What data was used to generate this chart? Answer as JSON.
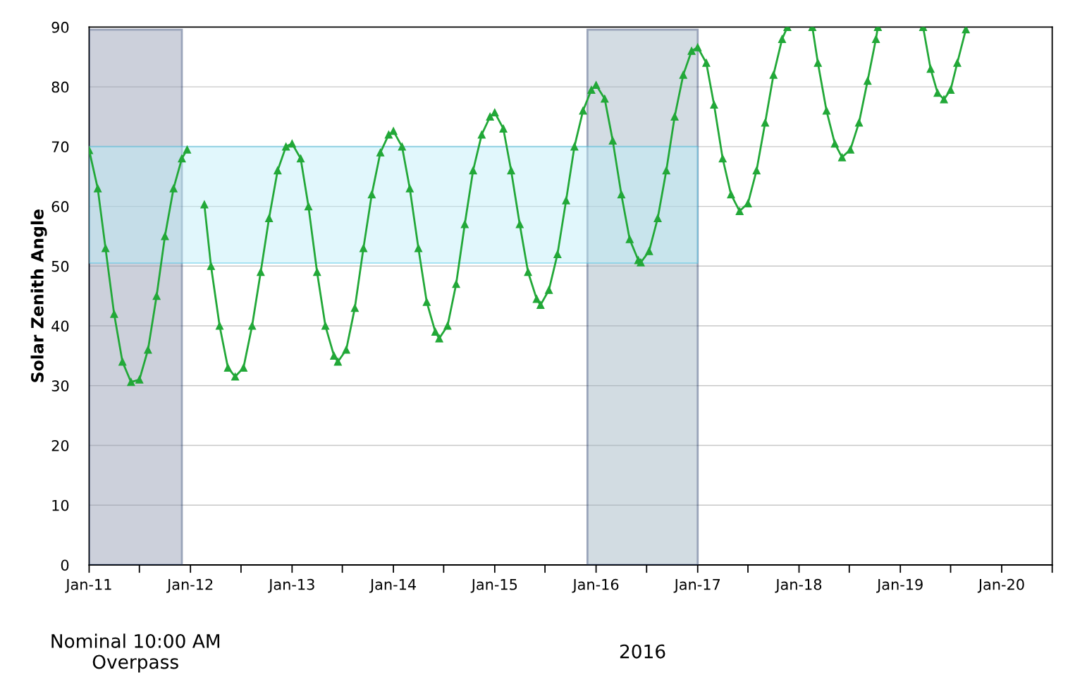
{
  "chart_data": {
    "type": "line",
    "ylabel": "Solar Zenith Angle",
    "x": [
      "2011-01-01",
      "2011-02-01",
      "2011-03-01",
      "2011-04-01",
      "2011-05-01",
      "2011-06-01",
      "2011-07-01",
      "2011-08-01",
      "2011-09-01",
      "2011-10-01",
      "2011-11-01",
      "2011-12-01",
      "2011-12-20",
      "2012-01-20",
      "2012-02-20",
      "2012-03-15",
      "2012-04-15",
      "2012-05-15",
      "2012-06-10",
      "2012-07-10",
      "2012-08-10",
      "2012-09-10",
      "2012-10-10",
      "2012-11-10",
      "2012-12-10",
      "2013-01-01",
      "2013-02-01",
      "2013-03-01",
      "2013-04-01",
      "2013-05-01",
      "2013-06-01",
      "2013-06-15",
      "2013-07-15",
      "2013-08-15",
      "2013-09-15",
      "2013-10-15",
      "2013-11-15",
      "2013-12-15",
      "2014-01-01",
      "2014-02-01",
      "2014-03-01",
      "2014-04-01",
      "2014-05-01",
      "2014-06-01",
      "2014-06-15",
      "2014-07-15",
      "2014-08-15",
      "2014-09-15",
      "2014-10-15",
      "2014-11-15",
      "2014-12-15",
      "2015-01-01",
      "2015-02-01",
      "2015-03-01",
      "2015-04-01",
      "2015-05-01",
      "2015-06-01",
      "2015-06-15",
      "2015-07-15",
      "2015-08-15",
      "2015-09-15",
      "2015-10-15",
      "2015-11-15",
      "2015-12-15",
      "2016-01-01",
      "2016-02-01",
      "2016-03-01",
      "2016-04-01",
      "2016-05-01",
      "2016-06-01",
      "2016-06-10",
      "2016-07-10",
      "2016-08-10",
      "2016-09-10",
      "2016-10-10",
      "2016-11-10",
      "2016-12-10",
      "2017-01-01",
      "2017-02-01",
      "2017-03-01",
      "2017-04-01",
      "2017-05-01",
      "2017-06-01",
      "2017-07-01",
      "2017-08-01",
      "2017-09-01",
      "2017-10-01",
      "2017-11-01",
      "2017-11-20",
      "2017-12-31",
      "2018-02-18",
      "2018-03-10",
      "2018-04-10",
      "2018-05-10",
      "2018-06-05",
      "2018-07-05",
      "2018-08-05",
      "2018-09-05",
      "2018-10-05",
      "2018-10-12",
      "2019-01-01",
      "2019-03-24",
      "2019-04-20",
      "2019-05-15",
      "2019-06-07",
      "2019-07-01",
      "2019-07-25",
      "2019-08-25"
    ],
    "series": [
      {
        "color": "#22a838",
        "values": [
          69.4,
          63,
          53,
          42,
          34,
          30.6,
          31,
          36,
          45,
          55,
          63,
          68,
          69.5,
          null,
          60.3,
          50,
          40,
          33,
          31.5,
          33,
          40,
          49,
          58,
          66,
          70,
          70.5,
          68,
          60,
          49,
          40,
          35,
          34,
          36,
          43,
          53,
          62,
          69,
          72,
          72.6,
          70,
          63,
          53,
          44,
          39,
          37.9,
          40,
          47,
          57,
          66,
          72,
          75,
          75.7,
          73,
          66,
          57,
          49,
          44.5,
          43.5,
          46,
          52,
          61,
          70,
          76,
          79.5,
          80.3,
          78,
          71,
          62,
          54.5,
          51,
          50.6,
          52.5,
          58,
          66,
          75,
          82,
          86,
          86.6,
          84,
          77,
          68,
          62,
          59.2,
          60.5,
          66,
          74,
          82,
          88,
          90,
          null,
          90,
          84,
          76,
          70.5,
          68.2,
          69.5,
          74,
          81,
          88,
          90,
          null,
          90,
          83,
          79,
          77.9,
          79.5,
          84,
          89.6
        ]
      }
    ],
    "marker": "triangle",
    "line_style": "solid",
    "grid": "y",
    "legend": false,
    "xlim": [
      "2011-01-01",
      "2020-07-01"
    ],
    "xticks": [
      {
        "value": "2011-01-01",
        "label": "Jan-11"
      },
      {
        "value": "2011-07-01",
        "label": null
      },
      {
        "value": "2012-01-01",
        "label": "Jan-12"
      },
      {
        "value": "2012-07-01",
        "label": null
      },
      {
        "value": "2013-01-01",
        "label": "Jan-13"
      },
      {
        "value": "2013-07-01",
        "label": null
      },
      {
        "value": "2014-01-01",
        "label": "Jan-14"
      },
      {
        "value": "2014-07-01",
        "label": null
      },
      {
        "value": "2015-01-01",
        "label": "Jan-15"
      },
      {
        "value": "2015-07-01",
        "label": null
      },
      {
        "value": "2016-01-01",
        "label": "Jan-16"
      },
      {
        "value": "2016-07-01",
        "label": null
      },
      {
        "value": "2017-01-01",
        "label": "Jan-17"
      },
      {
        "value": "2017-07-01",
        "label": null
      },
      {
        "value": "2018-01-01",
        "label": "Jan-18"
      },
      {
        "value": "2018-07-01",
        "label": null
      },
      {
        "value": "2019-01-01",
        "label": "Jan-19"
      },
      {
        "value": "2019-07-01",
        "label": null
      },
      {
        "value": "2020-01-01",
        "label": "Jan-20"
      },
      {
        "value": "2020-07-01",
        "label": null
      }
    ],
    "annotations": [
      "Nominal 10:00 AM\nOverpass",
      "2016"
    ],
    "ylim": [
      0,
      90
    ],
    "yticks": [
      0,
      10,
      20,
      30,
      40,
      50,
      60,
      70,
      80,
      90
    ],
    "bands": [
      {
        "axis": "x",
        "from": "2011-01-01",
        "to": "2011-12-01",
        "color": "#8e98b0"
      },
      {
        "axis": "x",
        "from": "2015-12-01",
        "to": "2017-01-01",
        "color": "#9db2c0"
      },
      {
        "axis": "y",
        "from": 50.5,
        "to": 70,
        "color": "#bdeef8"
      }
    ]
  }
}
